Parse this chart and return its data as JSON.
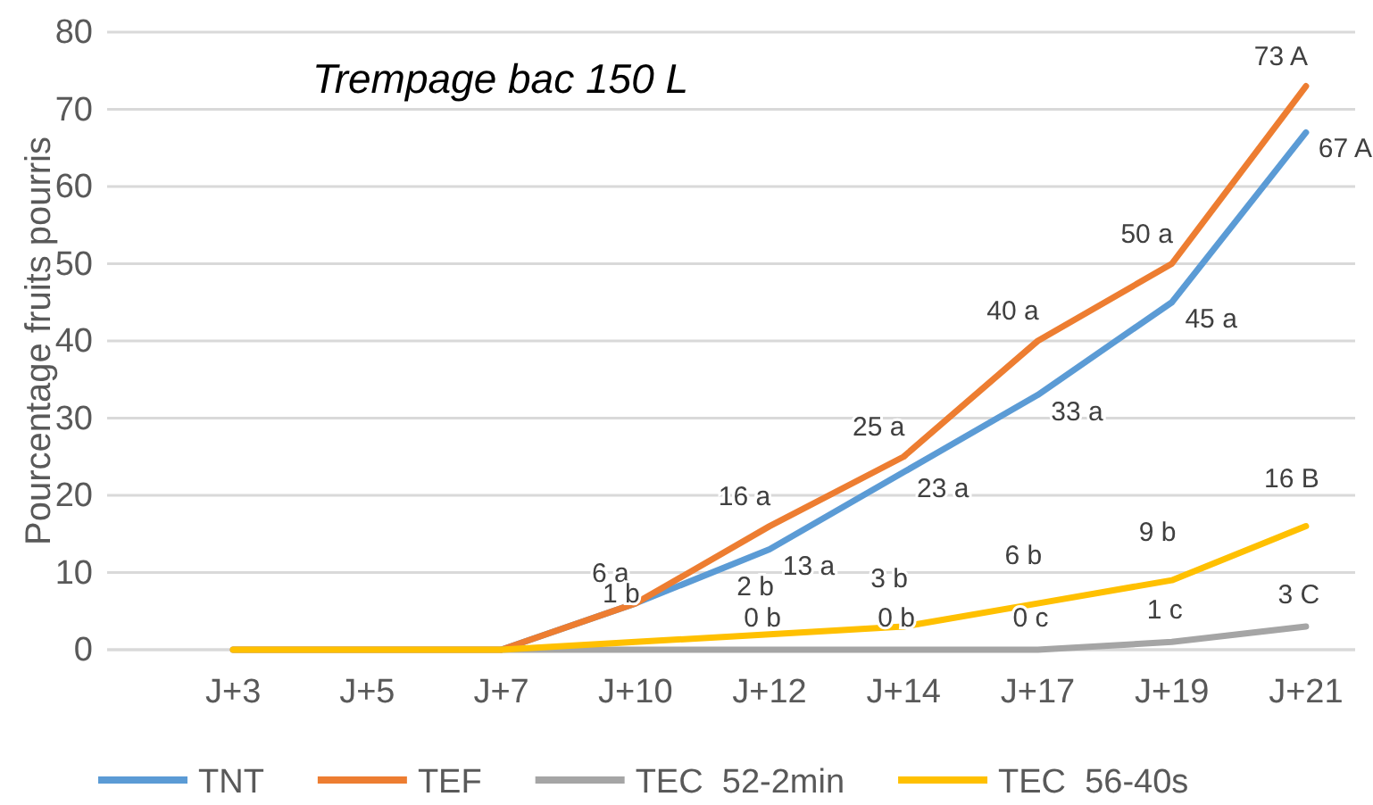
{
  "chart_data": {
    "type": "line",
    "title": "Trempage bac 150 L",
    "ylabel": "Pourcentage fruits pourris",
    "categories": [
      "J+3",
      "J+5",
      "J+7",
      "J+10",
      "J+12",
      "J+14",
      "J+17",
      "J+19",
      "J+21"
    ],
    "series": [
      {
        "name": "TNT",
        "color": "#5b9bd5",
        "values": [
          null,
          null,
          0,
          6,
          13,
          23,
          33,
          45,
          67
        ],
        "value_labels": [
          null,
          null,
          null,
          null,
          "13 a",
          "23 a",
          "33 a",
          "45 a",
          "67 A"
        ]
      },
      {
        "name": "TEF",
        "color": "#ed7d31",
        "values": [
          0,
          0,
          0,
          6,
          16,
          25,
          40,
          50,
          73
        ],
        "value_labels": [
          null,
          null,
          null,
          "6 a",
          "16 a",
          "25 a",
          "40 a",
          "50 a",
          "73 A"
        ]
      },
      {
        "name": "TEC  52-2min",
        "color": "#a5a5a5",
        "values": [
          0,
          0,
          0,
          0,
          0,
          0,
          0,
          1,
          3
        ],
        "value_labels": [
          null,
          null,
          null,
          null,
          "0 b",
          "0 b",
          "0 c",
          "1 c",
          "3 C"
        ]
      },
      {
        "name": "TEC  56-40s",
        "color": "#ffc000",
        "values": [
          0,
          0,
          0,
          1,
          2,
          3,
          6,
          9,
          16
        ],
        "value_labels": [
          null,
          null,
          null,
          "1 b",
          "2 b",
          "3 b",
          "6 b",
          "9 b",
          "16 B"
        ]
      }
    ],
    "ylim": [
      0,
      80
    ],
    "yticks": [
      0,
      10,
      20,
      30,
      40,
      50,
      60,
      70,
      80
    ],
    "grid": "y",
    "legend": "bottom",
    "marker": "none",
    "line_style": "solid"
  }
}
